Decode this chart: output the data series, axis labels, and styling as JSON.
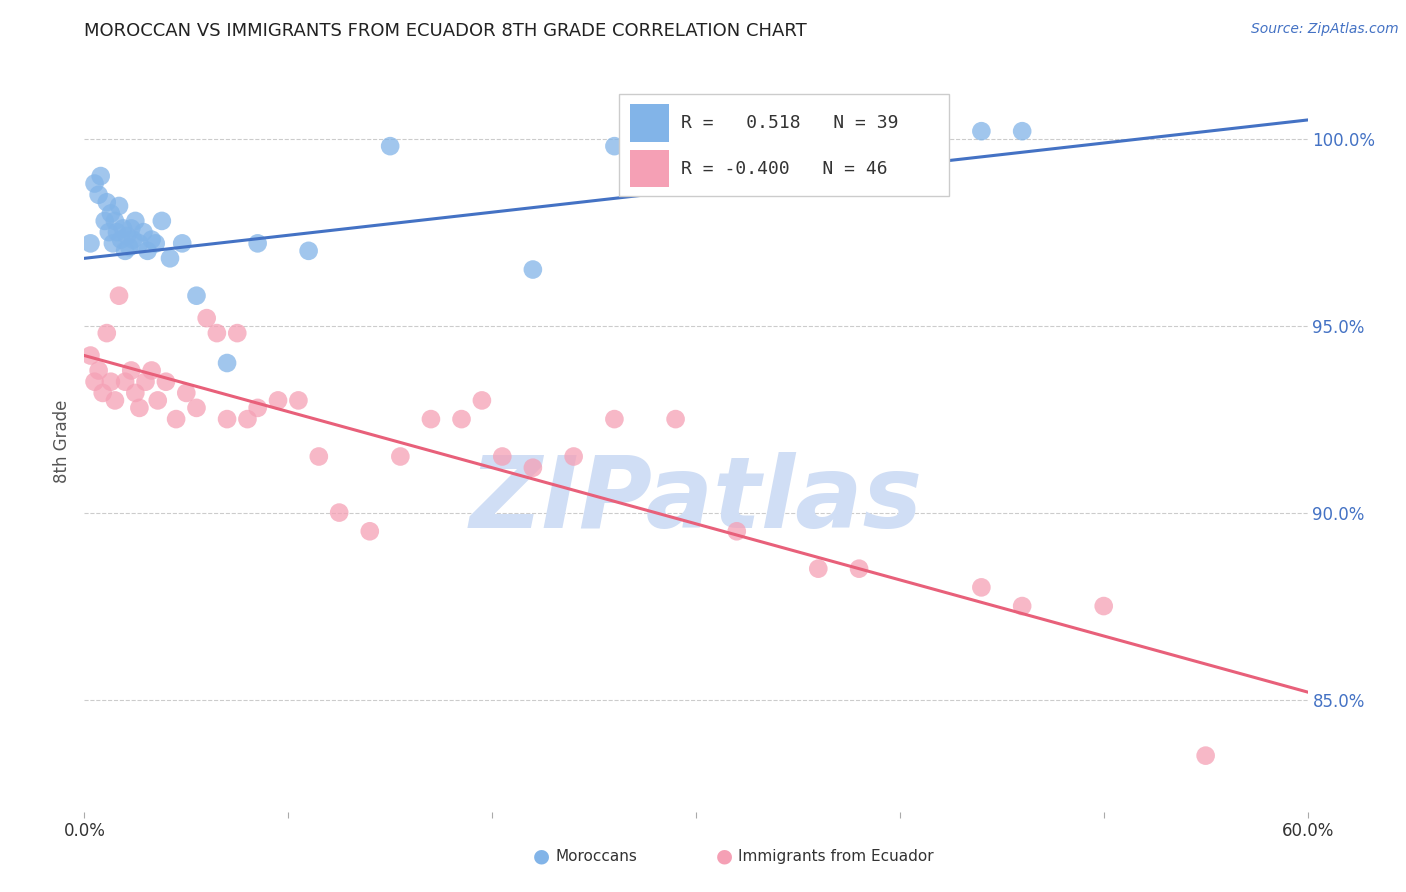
{
  "title": "MOROCCAN VS IMMIGRANTS FROM ECUADOR 8TH GRADE CORRELATION CHART",
  "source": "Source: ZipAtlas.com",
  "ylabel": "8th Grade",
  "xmin": 0.0,
  "xmax": 60.0,
  "ymin": 82.0,
  "ymax": 101.8,
  "blue_R": 0.518,
  "blue_N": 39,
  "pink_R": -0.4,
  "pink_N": 46,
  "blue_color": "#82B4E8",
  "pink_color": "#F5A0B5",
  "blue_line_color": "#4472C4",
  "pink_line_color": "#E8607A",
  "watermark_color": "#D0DEF5",
  "yticks": [
    85.0,
    90.0,
    95.0,
    100.0
  ],
  "ytick_labels": [
    "85.0%",
    "90.0%",
    "95.0%",
    "100.0%"
  ],
  "blue_scatter_x": [
    0.3,
    0.5,
    0.7,
    0.8,
    1.0,
    1.1,
    1.2,
    1.3,
    1.4,
    1.5,
    1.6,
    1.7,
    1.8,
    1.9,
    2.0,
    2.1,
    2.2,
    2.3,
    2.4,
    2.5,
    2.7,
    2.9,
    3.1,
    3.3,
    3.5,
    3.8,
    4.2,
    4.8,
    5.5,
    7.0,
    8.5,
    11.0,
    15.0,
    22.0,
    26.0,
    35.0,
    42.0,
    44.0,
    46.0
  ],
  "blue_scatter_y": [
    97.2,
    98.8,
    98.5,
    99.0,
    97.8,
    98.3,
    97.5,
    98.0,
    97.2,
    97.8,
    97.5,
    98.2,
    97.3,
    97.6,
    97.0,
    97.4,
    97.1,
    97.6,
    97.3,
    97.8,
    97.2,
    97.5,
    97.0,
    97.3,
    97.2,
    97.8,
    96.8,
    97.2,
    95.8,
    94.0,
    97.2,
    97.0,
    99.8,
    96.5,
    99.8,
    100.2,
    100.2,
    100.2,
    100.2
  ],
  "pink_scatter_x": [
    0.3,
    0.5,
    0.7,
    0.9,
    1.1,
    1.3,
    1.5,
    1.7,
    2.0,
    2.3,
    2.5,
    2.7,
    3.0,
    3.3,
    3.6,
    4.0,
    4.5,
    5.0,
    5.5,
    6.0,
    6.5,
    7.0,
    7.5,
    8.0,
    8.5,
    9.5,
    10.5,
    11.5,
    12.5,
    14.0,
    15.5,
    17.0,
    18.5,
    19.5,
    20.5,
    22.0,
    24.0,
    26.0,
    29.0,
    32.0,
    36.0,
    38.0,
    44.0,
    46.0,
    50.0,
    55.0
  ],
  "pink_scatter_y": [
    94.2,
    93.5,
    93.8,
    93.2,
    94.8,
    93.5,
    93.0,
    95.8,
    93.5,
    93.8,
    93.2,
    92.8,
    93.5,
    93.8,
    93.0,
    93.5,
    92.5,
    93.2,
    92.8,
    95.2,
    94.8,
    92.5,
    94.8,
    92.5,
    92.8,
    93.0,
    93.0,
    91.5,
    90.0,
    89.5,
    91.5,
    92.5,
    92.5,
    93.0,
    91.5,
    91.2,
    91.5,
    92.5,
    92.5,
    89.5,
    88.5,
    88.5,
    88.0,
    87.5,
    87.5,
    83.5
  ],
  "blue_line_x0": 0.0,
  "blue_line_x1": 60.0,
  "blue_line_y0": 96.8,
  "blue_line_y1": 100.5,
  "pink_line_x0": 0.0,
  "pink_line_x1": 60.0,
  "pink_line_y0": 94.2,
  "pink_line_y1": 85.2
}
